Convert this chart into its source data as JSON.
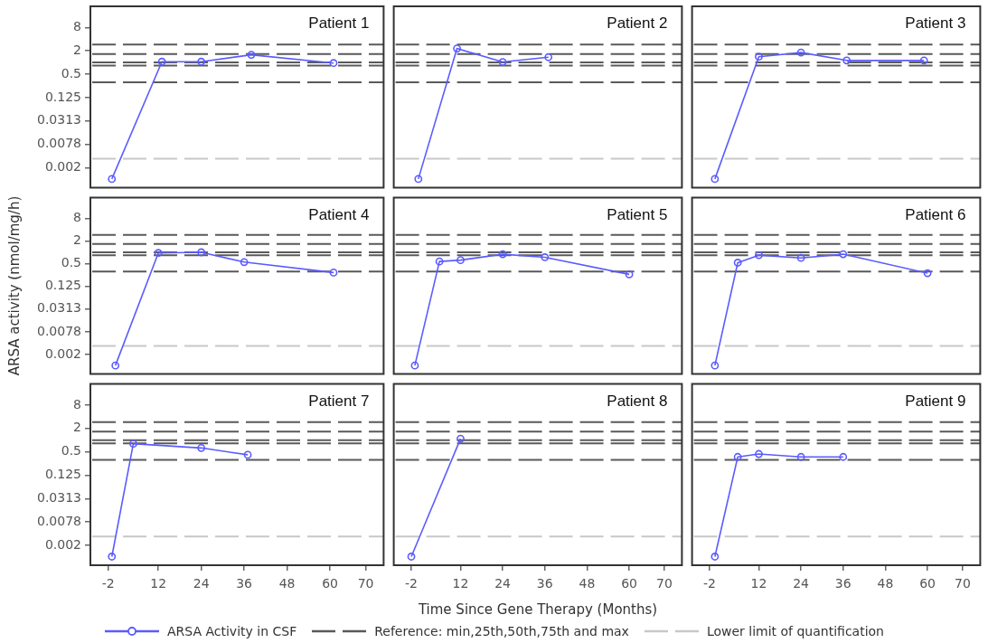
{
  "chart_data": [
    {
      "type": "line",
      "title": "Patient 1",
      "marker": "circle",
      "log": "y",
      "tick_labels": "y",
      "xlim": [
        -7,
        75
      ],
      "ylim": [
        0.0006,
        28
      ],
      "yticks": [
        {
          "value": 0.001953125,
          "label": "0.002"
        },
        {
          "value": 0.0078125,
          "label": "0.0078"
        },
        {
          "value": 0.03125,
          "label": "0.0313"
        },
        0.125,
        0.5,
        2,
        8
      ],
      "series": [
        {
          "color": "#5b5bff",
          "x": [
            -1,
            13,
            24,
            38,
            61
          ],
          "values": [
            0.001,
            1.05,
            1.05,
            1.58,
            0.97
          ]
        }
      ],
      "ref_lines": [
        {
          "axis": "y",
          "value": 0.31,
          "color": "#5a5a5a",
          "line_style": "dashed"
        },
        {
          "axis": "y",
          "value": 0.83,
          "color": "#5a5a5a",
          "line_style": "dashed"
        },
        {
          "axis": "y",
          "value": 1.0,
          "color": "#5a5a5a",
          "line_style": "dashed"
        },
        {
          "axis": "y",
          "value": 1.66,
          "color": "#5a5a5a",
          "line_style": "dashed"
        },
        {
          "axis": "y",
          "value": 2.9,
          "color": "#5a5a5a",
          "line_style": "dashed"
        },
        {
          "axis": "y",
          "value": 0.0033,
          "color": "#c8c8c8",
          "line_style": "dashed"
        }
      ]
    },
    {
      "type": "line",
      "title": "Patient 2",
      "marker": "circle",
      "log": "y",
      "tick_labels": false,
      "xlim": [
        -7,
        75
      ],
      "ylim": [
        0.0006,
        28
      ],
      "series": [
        {
          "color": "#5b5bff",
          "x": [
            0,
            11,
            24,
            37
          ],
          "values": [
            0.001,
            2.3,
            1.03,
            1.37
          ]
        }
      ],
      "ref_lines": [
        {
          "axis": "y",
          "value": 0.31,
          "color": "#5a5a5a",
          "line_style": "dashed"
        },
        {
          "axis": "y",
          "value": 0.83,
          "color": "#5a5a5a",
          "line_style": "dashed"
        },
        {
          "axis": "y",
          "value": 1.0,
          "color": "#5a5a5a",
          "line_style": "dashed"
        },
        {
          "axis": "y",
          "value": 1.66,
          "color": "#5a5a5a",
          "line_style": "dashed"
        },
        {
          "axis": "y",
          "value": 2.9,
          "color": "#5a5a5a",
          "line_style": "dashed"
        },
        {
          "axis": "y",
          "value": 0.0033,
          "color": "#c8c8c8",
          "line_style": "dashed"
        }
      ]
    },
    {
      "type": "line",
      "title": "Patient 3",
      "marker": "circle",
      "log": "y",
      "tick_labels": false,
      "xlim": [
        -7,
        75
      ],
      "ylim": [
        0.0006,
        28
      ],
      "series": [
        {
          "color": "#5b5bff",
          "x": [
            -0.5,
            12,
            24,
            37,
            59
          ],
          "values": [
            0.001,
            1.41,
            1.8,
            1.13,
            1.13
          ]
        }
      ],
      "ref_lines": [
        {
          "axis": "y",
          "value": 0.31,
          "color": "#5a5a5a",
          "line_style": "dashed"
        },
        {
          "axis": "y",
          "value": 0.83,
          "color": "#5a5a5a",
          "line_style": "dashed"
        },
        {
          "axis": "y",
          "value": 1.0,
          "color": "#5a5a5a",
          "line_style": "dashed"
        },
        {
          "axis": "y",
          "value": 1.66,
          "color": "#5a5a5a",
          "line_style": "dashed"
        },
        {
          "axis": "y",
          "value": 2.9,
          "color": "#5a5a5a",
          "line_style": "dashed"
        },
        {
          "axis": "y",
          "value": 0.0033,
          "color": "#c8c8c8",
          "line_style": "dashed"
        }
      ]
    },
    {
      "type": "line",
      "title": "Patient 4",
      "ylabel": "ARSA activity (nmol/mg/h)",
      "marker": "circle",
      "log": "y",
      "tick_labels": "y",
      "xlim": [
        -7,
        75
      ],
      "ylim": [
        0.0006,
        28
      ],
      "yticks": [
        {
          "value": 0.001953125,
          "label": "0.002"
        },
        {
          "value": 0.0078125,
          "label": "0.0078"
        },
        {
          "value": 0.03125,
          "label": "0.0313"
        },
        0.125,
        0.5,
        2,
        8
      ],
      "series": [
        {
          "color": "#5b5bff",
          "x": [
            0,
            12,
            24,
            36,
            61
          ],
          "values": [
            0.001,
            0.96,
            1.0,
            0.55,
            0.29
          ]
        }
      ],
      "ref_lines": [
        {
          "axis": "y",
          "value": 0.31,
          "color": "#5a5a5a",
          "line_style": "dashed"
        },
        {
          "axis": "y",
          "value": 0.83,
          "color": "#5a5a5a",
          "line_style": "dashed"
        },
        {
          "axis": "y",
          "value": 1.0,
          "color": "#5a5a5a",
          "line_style": "dashed"
        },
        {
          "axis": "y",
          "value": 1.66,
          "color": "#5a5a5a",
          "line_style": "dashed"
        },
        {
          "axis": "y",
          "value": 2.9,
          "color": "#5a5a5a",
          "line_style": "dashed"
        },
        {
          "axis": "y",
          "value": 0.0033,
          "color": "#c8c8c8",
          "line_style": "dashed"
        }
      ]
    },
    {
      "type": "line",
      "title": "Patient 5",
      "marker": "circle",
      "log": "y",
      "tick_labels": false,
      "xlim": [
        -7,
        75
      ],
      "ylim": [
        0.0006,
        28
      ],
      "series": [
        {
          "color": "#5b5bff",
          "x": [
            -1,
            6,
            12,
            24,
            36,
            60
          ],
          "values": [
            0.001,
            0.57,
            0.62,
            0.89,
            0.74,
            0.26
          ]
        }
      ],
      "ref_lines": [
        {
          "axis": "y",
          "value": 0.31,
          "color": "#5a5a5a",
          "line_style": "dashed"
        },
        {
          "axis": "y",
          "value": 0.83,
          "color": "#5a5a5a",
          "line_style": "dashed"
        },
        {
          "axis": "y",
          "value": 1.0,
          "color": "#5a5a5a",
          "line_style": "dashed"
        },
        {
          "axis": "y",
          "value": 1.66,
          "color": "#5a5a5a",
          "line_style": "dashed"
        },
        {
          "axis": "y",
          "value": 2.9,
          "color": "#5a5a5a",
          "line_style": "dashed"
        },
        {
          "axis": "y",
          "value": 0.0033,
          "color": "#c8c8c8",
          "line_style": "dashed"
        }
      ]
    },
    {
      "type": "line",
      "title": "Patient 6",
      "marker": "circle",
      "log": "y",
      "tick_labels": false,
      "xlim": [
        -7,
        75
      ],
      "ylim": [
        0.0006,
        28
      ],
      "series": [
        {
          "color": "#5b5bff",
          "x": [
            -0.5,
            6,
            12,
            24,
            36,
            60
          ],
          "values": [
            0.001,
            0.53,
            0.84,
            0.71,
            0.89,
            0.28
          ]
        }
      ],
      "ref_lines": [
        {
          "axis": "y",
          "value": 0.31,
          "color": "#5a5a5a",
          "line_style": "dashed"
        },
        {
          "axis": "y",
          "value": 0.83,
          "color": "#5a5a5a",
          "line_style": "dashed"
        },
        {
          "axis": "y",
          "value": 1.0,
          "color": "#5a5a5a",
          "line_style": "dashed"
        },
        {
          "axis": "y",
          "value": 1.66,
          "color": "#5a5a5a",
          "line_style": "dashed"
        },
        {
          "axis": "y",
          "value": 2.9,
          "color": "#5a5a5a",
          "line_style": "dashed"
        },
        {
          "axis": "y",
          "value": 0.0033,
          "color": "#c8c8c8",
          "line_style": "dashed"
        }
      ]
    },
    {
      "type": "line",
      "title": "Patient 7",
      "marker": "circle",
      "log": "y",
      "xlim": [
        -7,
        75
      ],
      "xticks": [
        -2,
        12,
        24,
        36,
        48,
        60,
        70
      ],
      "ylim": [
        0.0006,
        28
      ],
      "yticks": [
        {
          "value": 0.001953125,
          "label": "0.002"
        },
        {
          "value": 0.0078125,
          "label": "0.0078"
        },
        {
          "value": 0.03125,
          "label": "0.0313"
        },
        0.125,
        0.5,
        2,
        8
      ],
      "series": [
        {
          "color": "#5b5bff",
          "x": [
            -1,
            5,
            24,
            37
          ],
          "values": [
            0.001,
            0.81,
            0.63,
            0.42
          ]
        }
      ],
      "ref_lines": [
        {
          "axis": "y",
          "value": 0.31,
          "color": "#5a5a5a",
          "line_style": "dashed"
        },
        {
          "axis": "y",
          "value": 0.83,
          "color": "#5a5a5a",
          "line_style": "dashed"
        },
        {
          "axis": "y",
          "value": 1.0,
          "color": "#5a5a5a",
          "line_style": "dashed"
        },
        {
          "axis": "y",
          "value": 1.66,
          "color": "#5a5a5a",
          "line_style": "dashed"
        },
        {
          "axis": "y",
          "value": 2.9,
          "color": "#5a5a5a",
          "line_style": "dashed"
        },
        {
          "axis": "y",
          "value": 0.0033,
          "color": "#c8c8c8",
          "line_style": "dashed"
        }
      ]
    },
    {
      "type": "line",
      "title": "Patient 8",
      "xlabel": "Time Since Gene Therapy (Months)",
      "legend": "bottom",
      "marker": "circle",
      "log": "y",
      "tick_labels": "x",
      "xlim": [
        -7,
        75
      ],
      "xticks": [
        -2,
        12,
        24,
        36,
        48,
        60,
        70
      ],
      "ylim": [
        0.0006,
        28
      ],
      "series": [
        {
          "name": "ARSA Activity in CSF",
          "color": "#5b5bff",
          "x": [
            -2,
            12
          ],
          "values": [
            0.001,
            1.09
          ]
        }
      ],
      "ref_lines": [
        {
          "axis": "y",
          "value": 0.31,
          "color": "#5a5a5a",
          "line_style": "dashed",
          "label": "Reference: min,25th,50th,75th and max"
        },
        {
          "axis": "y",
          "value": 0.83,
          "color": "#5a5a5a",
          "line_style": "dashed"
        },
        {
          "axis": "y",
          "value": 1.0,
          "color": "#5a5a5a",
          "line_style": "dashed"
        },
        {
          "axis": "y",
          "value": 1.66,
          "color": "#5a5a5a",
          "line_style": "dashed"
        },
        {
          "axis": "y",
          "value": 2.9,
          "color": "#5a5a5a",
          "line_style": "dashed"
        },
        {
          "axis": "y",
          "value": 0.0033,
          "color": "#c8c8c8",
          "line_style": "dashed",
          "label": "Lower limit of quantification"
        }
      ]
    },
    {
      "type": "line",
      "title": "Patient 9",
      "marker": "circle",
      "log": "y",
      "tick_labels": "x",
      "xlim": [
        -7,
        75
      ],
      "xticks": [
        -2,
        12,
        24,
        36,
        48,
        60,
        70
      ],
      "ylim": [
        0.0006,
        28
      ],
      "series": [
        {
          "color": "#5b5bff",
          "x": [
            -0.5,
            6,
            12,
            24,
            36
          ],
          "values": [
            0.001,
            0.37,
            0.44,
            0.37,
            0.37
          ]
        }
      ],
      "ref_lines": [
        {
          "axis": "y",
          "value": 0.31,
          "color": "#5a5a5a",
          "line_style": "dashed"
        },
        {
          "axis": "y",
          "value": 0.83,
          "color": "#5a5a5a",
          "line_style": "dashed"
        },
        {
          "axis": "y",
          "value": 1.0,
          "color": "#5a5a5a",
          "line_style": "dashed"
        },
        {
          "axis": "y",
          "value": 1.66,
          "color": "#5a5a5a",
          "line_style": "dashed"
        },
        {
          "axis": "y",
          "value": 2.9,
          "color": "#5a5a5a",
          "line_style": "dashed"
        },
        {
          "axis": "y",
          "value": 0.0033,
          "color": "#c8c8c8",
          "line_style": "dashed"
        }
      ]
    }
  ]
}
